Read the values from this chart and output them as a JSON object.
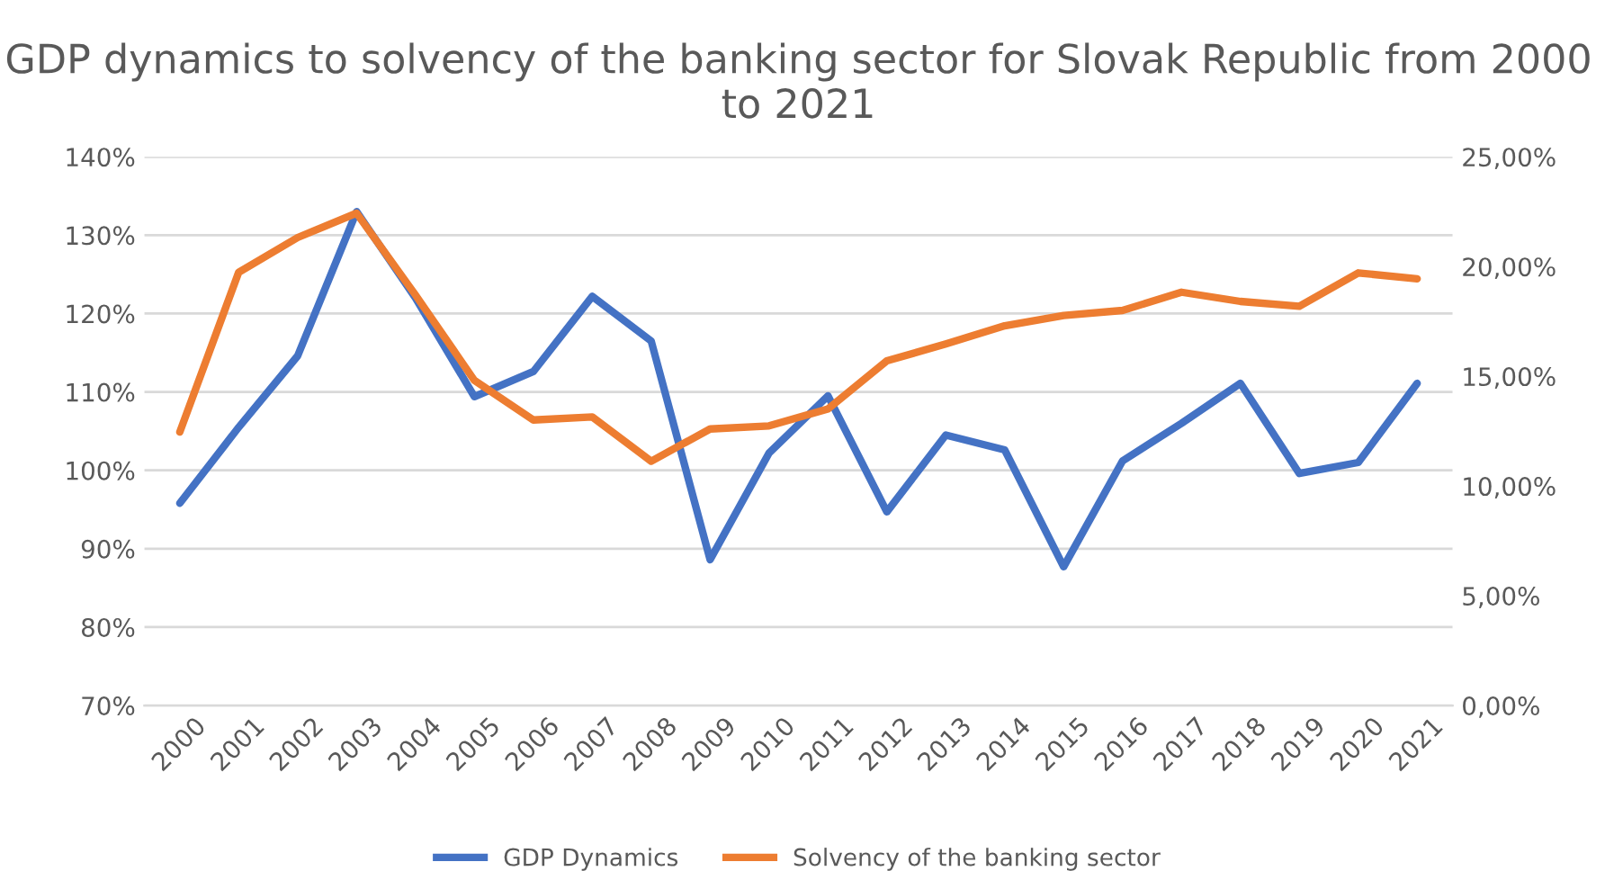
{
  "chart_data": {
    "type": "line",
    "title": "GDP dynamics to solvency of the banking sector for Slovak Republic from 2000 to 2021",
    "categories": [
      "2000",
      "2001",
      "2002",
      "2003",
      "2004",
      "2005",
      "2006",
      "2007",
      "2008",
      "2009",
      "2010",
      "2011",
      "2012",
      "2013",
      "2014",
      "2015",
      "2016",
      "2017",
      "2018",
      "2019",
      "2020",
      "2021"
    ],
    "series": [
      {
        "name": "GDP Dynamics",
        "color": "#4472c4",
        "values": [
          95.8,
          105.5,
          114.6,
          133.0,
          122.0,
          109.4,
          112.6,
          122.2,
          116.5,
          88.6,
          102.2,
          109.5,
          94.7,
          104.5,
          102.6,
          87.7,
          101.2,
          106.0,
          111.1,
          99.6,
          101.0,
          111.1
        ]
      },
      {
        "name": "Solvency of the banking sector",
        "color": "#ed7d31",
        "axis": "y2",
        "values": [
          12.46,
          19.74,
          21.32,
          22.43,
          18.7,
          14.81,
          13.01,
          13.15,
          11.13,
          12.6,
          12.74,
          13.51,
          15.7,
          16.47,
          17.3,
          17.77,
          18.0,
          18.83,
          18.41,
          18.19,
          19.71,
          19.44
        ]
      }
    ],
    "ylim": [
      70,
      140
    ],
    "yticks": [
      {
        "value": 70,
        "label": "70%"
      },
      {
        "value": 80,
        "label": "80%"
      },
      {
        "value": 90,
        "label": "90%"
      },
      {
        "value": 100,
        "label": "100%"
      },
      {
        "value": 110,
        "label": "110%"
      },
      {
        "value": 120,
        "label": "120%"
      },
      {
        "value": 130,
        "label": "130%"
      },
      {
        "value": 140,
        "label": "140%"
      }
    ],
    "y2lim": [
      0,
      25
    ],
    "y2ticks": [
      {
        "value": 0,
        "label": "0,00%"
      },
      {
        "value": 5,
        "label": "5,00%"
      },
      {
        "value": 10,
        "label": "10,00%"
      },
      {
        "value": 15,
        "label": "15,00%"
      },
      {
        "value": 20,
        "label": "20,00%"
      },
      {
        "value": 25,
        "label": "25,00%"
      }
    ],
    "grid": "y",
    "legend": "bottom",
    "marker": "none",
    "line_style": "solid"
  }
}
